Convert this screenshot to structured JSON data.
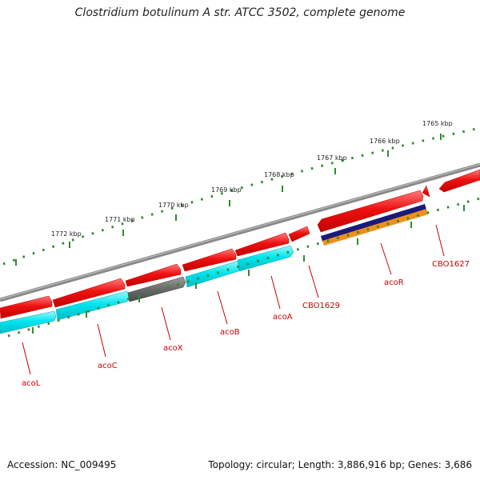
{
  "title": "Clostridium botulinum A str. ATCC 3502, complete genome",
  "footer": {
    "accession": "Accession: NC_009495",
    "summary": "Topology: circular; Length: 3,886,916 bp; Genes: 3,686"
  },
  "scale_labels": [
    "1765 kbp",
    "1766 kbp",
    "1767 kbp",
    "1768 kbp",
    "1769 kbp",
    "1770 kbp",
    "1771 kbp",
    "1772 kbp"
  ],
  "gene_labels": [
    "acoL",
    "acoC",
    "acoX",
    "acoB",
    "acoA",
    "CBO1629",
    "acoR",
    "CBO1627"
  ],
  "colors": {
    "backbone": "#8a8a8a",
    "forward_cds": "#ee1111",
    "reverse_cds": "#00e5ef",
    "pseudo_gene": "#6a6a6a",
    "navy_track": "#1a1a7a",
    "orange_track": "#f0901a",
    "tick": "#2e8b2e",
    "label": "#cc0000"
  }
}
